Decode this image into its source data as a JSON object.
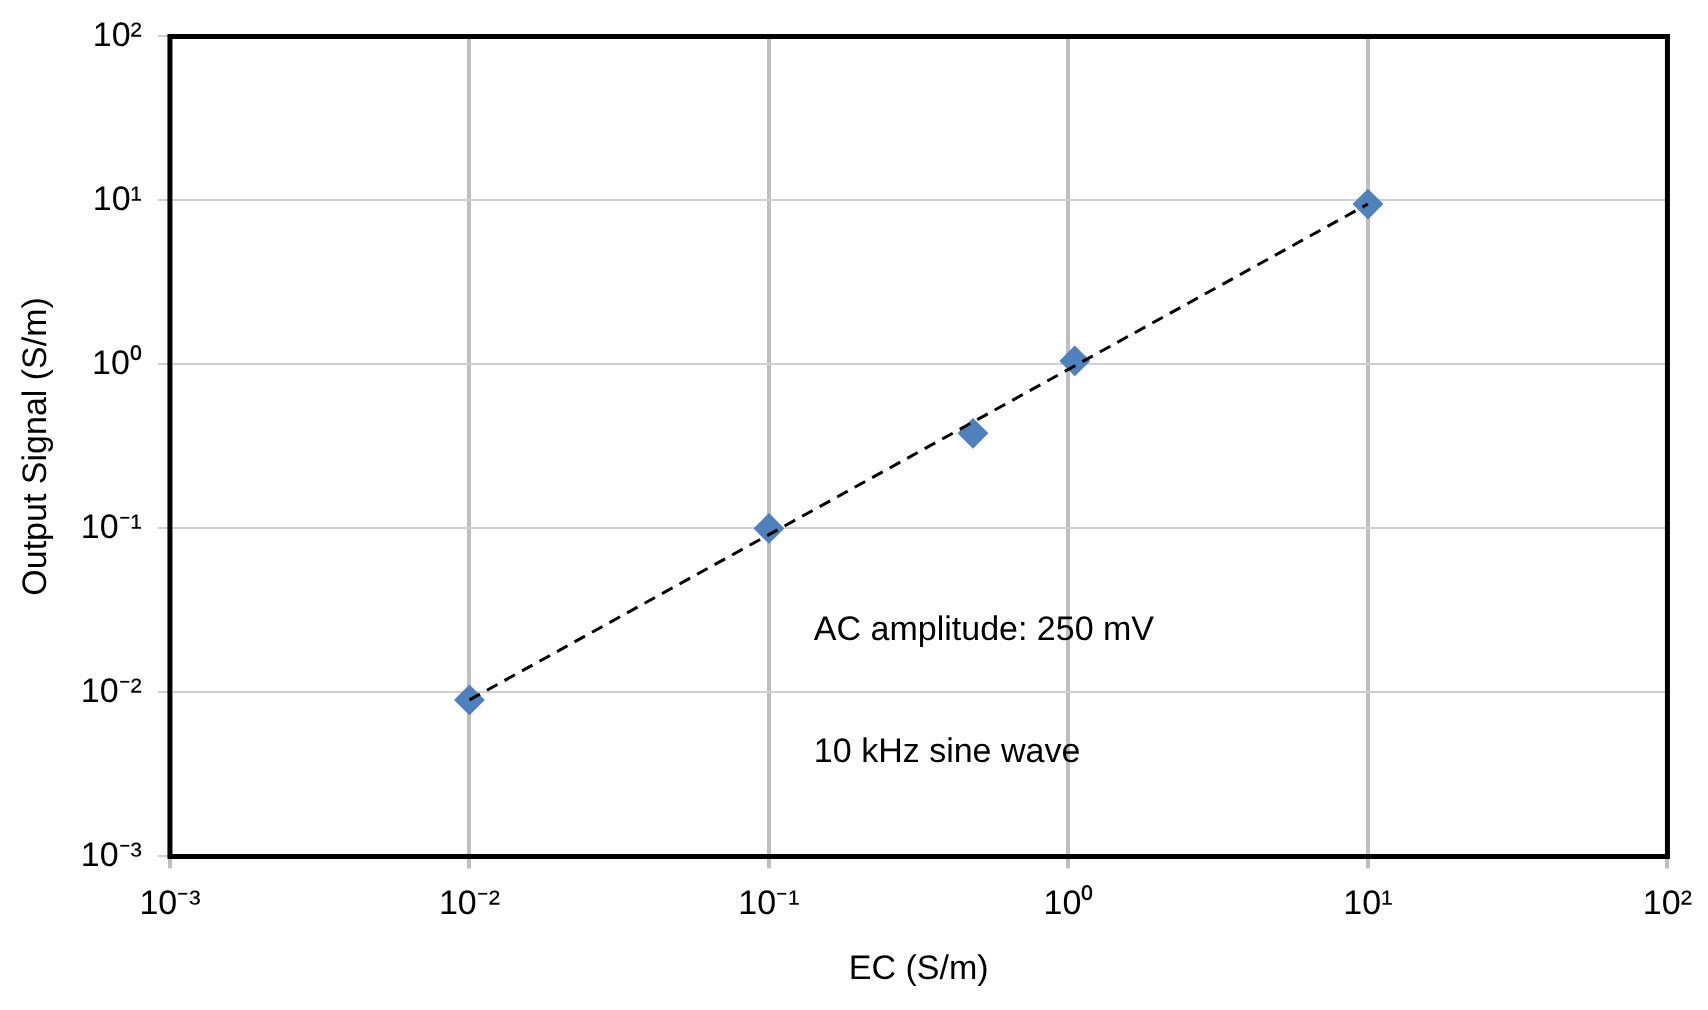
{
  "chart_data": {
    "type": "scatter",
    "xlabel": "EC (S/m)",
    "ylabel": "Output Signal (S/m)",
    "log": "xy",
    "grid": true,
    "legend": false,
    "marker": "diamond",
    "xlim": [
      0.001,
      100
    ],
    "ylim": [
      0.001,
      100
    ],
    "xticks": [
      {
        "value": 0.001,
        "label": "10⁻³"
      },
      {
        "value": 0.01,
        "label": "10⁻²"
      },
      {
        "value": 0.1,
        "label": "10⁻¹"
      },
      {
        "value": 1,
        "label": "10⁰"
      },
      {
        "value": 10,
        "label": "10¹"
      },
      {
        "value": 100,
        "label": "10²"
      }
    ],
    "yticks": [
      {
        "value": 0.001,
        "label": "10⁻³"
      },
      {
        "value": 0.01,
        "label": "10⁻²"
      },
      {
        "value": 0.1,
        "label": "10⁻¹"
      },
      {
        "value": 1,
        "label": "10⁰"
      },
      {
        "value": 10,
        "label": "10¹"
      },
      {
        "value": 100,
        "label": "10²"
      }
    ],
    "series": [
      {
        "type": "scatter",
        "color": "#4f81bd",
        "x": [
          0.01,
          0.1,
          0.48,
          1.05,
          10
        ],
        "values": [
          0.009,
          0.1,
          0.38,
          1.05,
          9.5
        ]
      },
      {
        "type": "line",
        "color": "#000000",
        "line_style": "dashed",
        "marker": "none",
        "x": [
          0.01,
          10
        ],
        "values": [
          0.009,
          9.5
        ]
      }
    ],
    "annotations": [
      "AC amplitude: 250 mV",
      "10 kHz sine wave"
    ]
  }
}
